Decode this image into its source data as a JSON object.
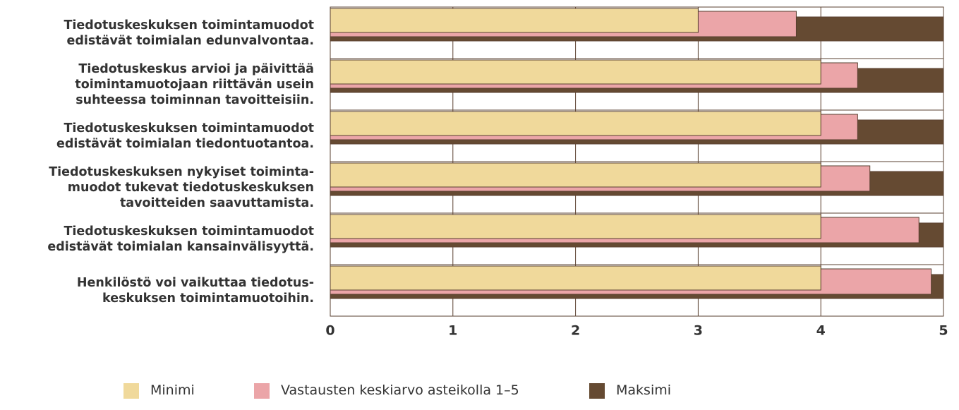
{
  "chart_data": {
    "type": "bar",
    "orientation": "horizontal",
    "categories": [
      "Tiedotuskeskuksen toimintamuodot\nedistävät toimialan edunvalvontaa.",
      "Tiedotuskeskus arvioi ja päivittää\ntoimintamuotojaan riittävän usein\nsuhteessa toiminnan tavoitteisiin.",
      "Tiedotuskeskuksen toimintamuodot\nedistävät toimialan tiedontuotantoa.",
      "Tiedotuskeskuksen nykyiset toiminta-\nmuodot tukevat tiedotuskeskuksen\ntavoitteiden saavuttamista.",
      "Tiedotuskeskuksen toimintamuodot\nedistävät toimialan kansainvälisyyttä.",
      "Henkilöstö voi vaikuttaa tiedotus-\nkeskuksen toimintamuotoihin."
    ],
    "series": [
      {
        "name": "Minimi",
        "color": "#f0d99b",
        "values": [
          3,
          4,
          4,
          4,
          4,
          4
        ]
      },
      {
        "name": "Vastausten keskiarvo asteikolla 1–5",
        "color": "#eba5a8",
        "values": [
          3.8,
          4.3,
          4.3,
          4.4,
          4.8,
          4.9
        ]
      },
      {
        "name": "Maksimi",
        "color": "#654a32",
        "values": [
          5,
          5,
          5,
          5,
          5,
          5
        ]
      }
    ],
    "xlim": [
      0,
      5
    ],
    "xticks": [
      0,
      1,
      2,
      3,
      4,
      5
    ],
    "grid": true,
    "legend": "bottom"
  }
}
